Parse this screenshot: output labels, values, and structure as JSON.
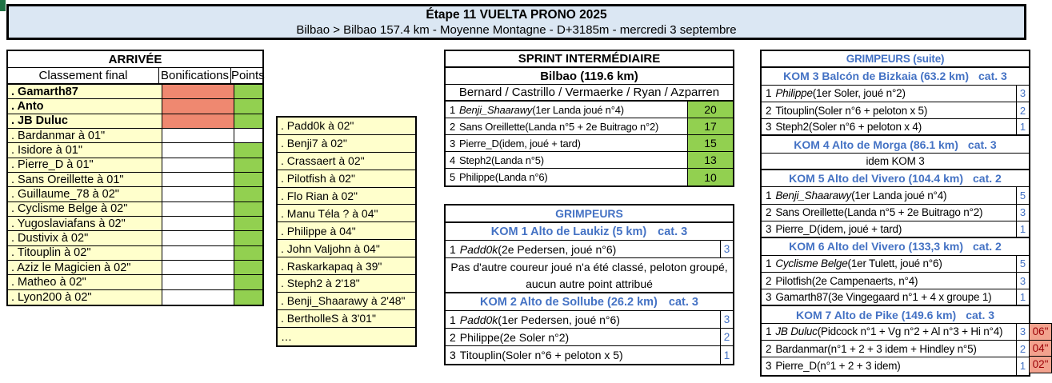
{
  "header": {
    "title": "Étape 11 VUELTA PRONO 2025",
    "subtitle": "Bilbao > Bilbao  157.4 km - Moyenne Montagne - D+3185m - mercredi 3 septembre"
  },
  "colors": {
    "header_bg": "#DBE7F3",
    "name_bg": "#FFFFCC",
    "bonification_bg": "#EF8870",
    "points_bg": "#92D050",
    "accent_blue": "#4472C4",
    "bonus_bg": "#F2A28E",
    "bonus_text": "#9C0006"
  },
  "arrivee": {
    "title": "ARRIVÉE",
    "columns": {
      "name": "Classement final",
      "bonifications": "Bonifications",
      "points": "Points"
    },
    "rows": [
      {
        "label": ". Gamarth87",
        "bonif_bg": "salmon",
        "points_bg": "green"
      },
      {
        "label": ". Anto",
        "bonif_bg": "salmon",
        "points_bg": "green"
      },
      {
        "label": ". JB Duluc",
        "bonif_bg": "salmon",
        "points_bg": "green"
      },
      {
        "label": ". Bardanmar à 01\"",
        "bonif_bg": "white",
        "points_bg": "white"
      },
      {
        "label": ". Isidore à 01\"",
        "bonif_bg": "white",
        "points_bg": "green"
      },
      {
        "label": ". Pierre_D à 01\"",
        "bonif_bg": "white",
        "points_bg": "green"
      },
      {
        "label": ". Sans Oreillette à 01\"",
        "bonif_bg": "white",
        "points_bg": "green"
      },
      {
        "label": ". Guillaume_78 à 02\"",
        "bonif_bg": "white",
        "points_bg": "green"
      },
      {
        "label": ". Cyclisme Belge à 02\"",
        "bonif_bg": "white",
        "points_bg": "green"
      },
      {
        "label": ". Yugoslaviafans à 02\"",
        "bonif_bg": "white",
        "points_bg": "green"
      },
      {
        "label": ". Dustivix à 02\"",
        "bonif_bg": "white",
        "points_bg": "green"
      },
      {
        "label": ". Titouplin à 02\"",
        "bonif_bg": "white",
        "points_bg": "green"
      },
      {
        "label": ". Aziz le Magicien à 02\"",
        "bonif_bg": "white",
        "points_bg": "green"
      },
      {
        "label": ". Matheo à 02\"",
        "bonif_bg": "white",
        "points_bg": "green"
      },
      {
        "label": ". Lyon200 à 02\"",
        "bonif_bg": "white",
        "points_bg": "green"
      }
    ],
    "extra_rows": [
      ". Padd0k à 02\"",
      ". Benji7 à 02\"",
      ". Crassaert à 02\"",
      ". Pilotfish à 02\"",
      ". Flo Rian à 02\"",
      ". Manu Téla ? à 04\"",
      ". Philippe à 04\"",
      ". John Valjohn à 04\"",
      ". Raskarkapaq à 39\"",
      ". Steph2 à 2'18\"",
      ". Benji_Shaarawy à 2'48\"",
      ". BertholleS à 3'01\"",
      "…"
    ]
  },
  "sprint": {
    "title": "SPRINT INTERMÉDIAIRE",
    "location": "Bilbao (119.6 km)",
    "riders": "Bernard / Castrillo / Vermaerke / Ryan / Azparren",
    "rows": [
      {
        "rank": "1",
        "name": "Benji_Shaarawy",
        "detail": " (1er Landa joué n°4)",
        "points": "20"
      },
      {
        "rank": "2",
        "name": "Sans Oreillette",
        "detail": " (Landa n°5 + 2e Buitrago n°2)",
        "points": "17"
      },
      {
        "rank": "3",
        "name": "Pierre_D",
        "detail": " (idem, joué + tard)",
        "points": "15"
      },
      {
        "rank": "4",
        "name": "Steph2",
        "detail": " (Landa n°5)",
        "points": "13"
      },
      {
        "rank": "5",
        "name": "Philippe",
        "detail": " (Landa n°6)",
        "points": "10"
      }
    ]
  },
  "grimpeurs": {
    "title": "GRIMPEURS",
    "koms": [
      {
        "header": "KOM 1 Alto de Laukiz (5 km)",
        "cat": "cat. 3",
        "rows": [
          {
            "rank": "1",
            "name": "Padd0k",
            "detail": " (2e Pedersen, joué n°6)",
            "points": "3"
          }
        ],
        "note_line1": "Pas d'autre coureur joué n'a été classé, peloton groupé,",
        "note_line2": "aucun autre point attribué"
      },
      {
        "header": "KOM 2 Alto de Sollube (26.2 km)",
        "cat": "cat. 3",
        "rows": [
          {
            "rank": "1",
            "name": "Padd0k",
            "detail": " (1er Pedersen, joué n°6)",
            "points": "3"
          },
          {
            "rank": "2",
            "name": "Philippe",
            "detail": " (2e Soler n°2)",
            "points": "2"
          },
          {
            "rank": "3",
            "name": "Titouplin",
            "detail": " (Soler n°6 + peloton x 5)",
            "points": "1"
          }
        ]
      }
    ]
  },
  "grimpeurs_suite": {
    "title": "GRIMPEURS (suite)",
    "koms": [
      {
        "header": "KOM 3 Balcón de Bizkaia (63.2 km)",
        "cat": "cat. 3",
        "rows": [
          {
            "rank": "1",
            "name": "Philippe",
            "detail": " (1er Soler, joué n°2)",
            "points": "3"
          },
          {
            "rank": "2",
            "name": "Titouplin",
            "detail": " (Soler n°6 + peloton x 5)",
            "points": "2"
          },
          {
            "rank": "3",
            "name": "Steph2",
            "detail": " (Soler n°6 + peloton x 4)",
            "points": "1"
          }
        ]
      },
      {
        "header": "KOM 4 Alto de Morga (86.1 km)",
        "cat": "cat. 3",
        "note": "idem KOM 3"
      },
      {
        "header": "KOM 5 Alto del Vivero (104.4 km)",
        "cat": "cat. 2",
        "rows": [
          {
            "rank": "1",
            "name": "Benji_Shaarawy",
            "detail": " (1er Landa joué n°4)",
            "points": "5"
          },
          {
            "rank": "2",
            "name": "Sans Oreillette",
            "detail": " (Landa n°5 + 2e Buitrago n°2)",
            "points": "3"
          },
          {
            "rank": "3",
            "name": "Pierre_D",
            "detail": " (idem, joué + tard)",
            "points": "1"
          }
        ]
      },
      {
        "header": "KOM 6 Alto del Vivero (133,3 km)",
        "cat": "cat. 2",
        "rows": [
          {
            "rank": "1",
            "name": "Cyclisme Belge",
            "detail": " (1er Tulett, joué n°6)",
            "points": "5"
          },
          {
            "rank": "2",
            "name": "Pilotfish",
            "detail": " (2e Campenaerts, n°4)",
            "points": "3"
          },
          {
            "rank": "3",
            "name": "Gamarth87",
            "detail": " (3e Vingegaard n°1 + 4 x groupe 1)",
            "points": "1"
          }
        ]
      },
      {
        "header": "KOM 7 Alto de Pike (149.6 km)",
        "cat": "cat. 3",
        "rows": [
          {
            "rank": "1",
            "name": "JB Duluc",
            "detail": " (Pidcock n°1 + Vg n°2 + Al n°3 + Hi n°4)",
            "points": "3",
            "bonus": "06\""
          },
          {
            "rank": "2",
            "name": "Bardanmar",
            "detail": " (n°1 + 2 + 3 idem + Hindley n°5)",
            "points": "2",
            "bonus": "04\""
          },
          {
            "rank": "3",
            "name": "Pierre_D",
            "detail": " (n°1 + 2 + 3 idem)",
            "points": "1",
            "bonus": "02\""
          }
        ]
      }
    ]
  }
}
